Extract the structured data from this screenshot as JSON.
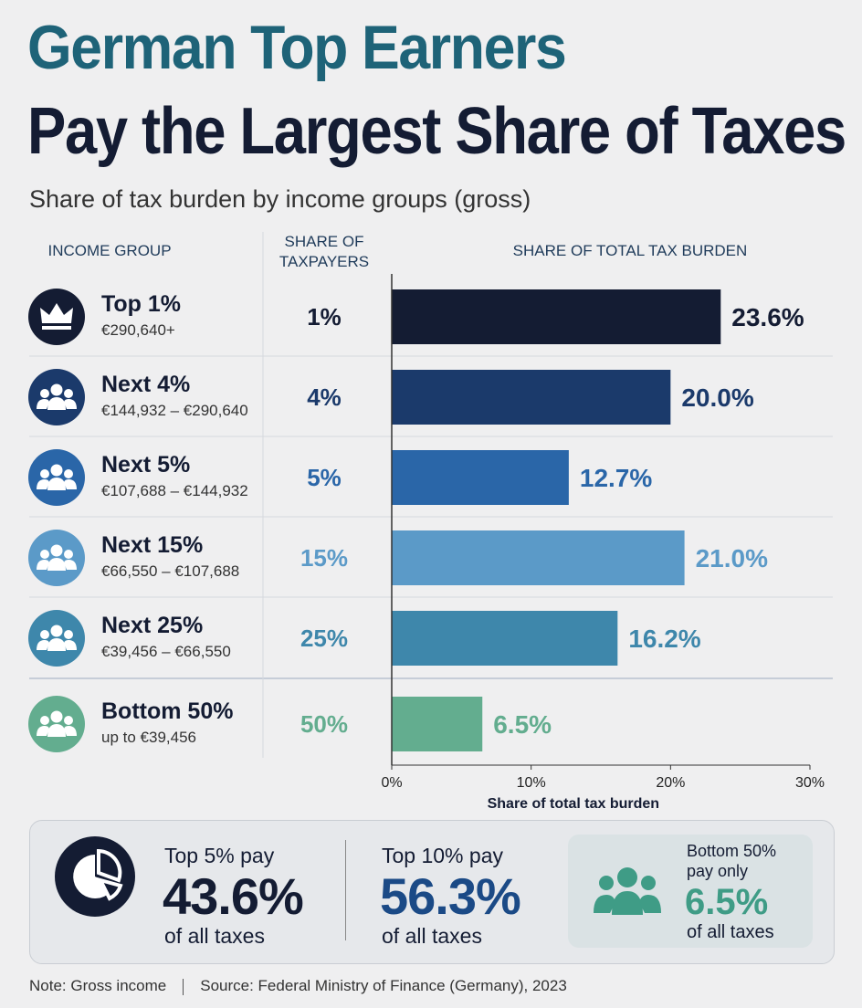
{
  "header": {
    "title_line1": "German Top Earners",
    "title_line2": "Pay the Largest Share of Taxes",
    "subtitle": "Share of tax burden by income groups (gross)"
  },
  "columns": {
    "income_group": "INCOME GROUP",
    "share_of_taxpayers": "SHARE OF TAXPAYERS",
    "share_of_total": "SHARE OF TOTAL TAX BURDEN"
  },
  "chart_data": {
    "type": "bar",
    "orientation": "horizontal",
    "categories": [
      "Top 1%",
      "Next 4%",
      "Next 5%",
      "Next 15%",
      "Next 25%",
      "Bottom 50%"
    ],
    "income_ranges": [
      "€290,640+",
      "€144,932 – €290,640",
      "€107,688 – €144,932",
      "€66,550 – €107,688",
      "€39,456 – €66,550",
      "up to €39,456"
    ],
    "taxpayer_share_labels": [
      "1%",
      "4%",
      "5%",
      "15%",
      "25%",
      "50%"
    ],
    "values": [
      23.6,
      20.0,
      12.7,
      21.0,
      16.2,
      6.5
    ],
    "value_labels": [
      "23.6%",
      "20.0%",
      "12.7%",
      "21.0%",
      "16.2%",
      "6.5%"
    ],
    "colors": [
      "#141c33",
      "#1b3a6b",
      "#2a66a8",
      "#5b9ac8",
      "#3e87ab",
      "#63ad8f"
    ],
    "group_icons": [
      "crown-icon",
      "people-icon",
      "people-icon",
      "people-icon",
      "people-icon",
      "people-icon"
    ],
    "xlim": [
      0,
      30
    ],
    "xticks": [
      "0%",
      "10%",
      "20%",
      "30%"
    ],
    "xlabel": "Share of total tax burden",
    "grid": false
  },
  "summary": {
    "top5": {
      "prefix": "Top 5% pay",
      "value": "43.6%",
      "suffix": "of all taxes",
      "color": "#141c33",
      "icon": "pie-chart-icon"
    },
    "top10": {
      "prefix": "Top 10% pay",
      "value": "56.3%",
      "suffix": "of all taxes",
      "color": "#1b4a86"
    },
    "bottom50": {
      "prefix_line1": "Bottom 50%",
      "prefix_line2": "pay only",
      "value": "6.5%",
      "suffix": "of all taxes",
      "color": "#3f9c86",
      "icon": "people-icon"
    }
  },
  "footer": {
    "note": "Note: Gross income",
    "source": "Source: Federal Ministry of Finance (Germany), 2023"
  }
}
